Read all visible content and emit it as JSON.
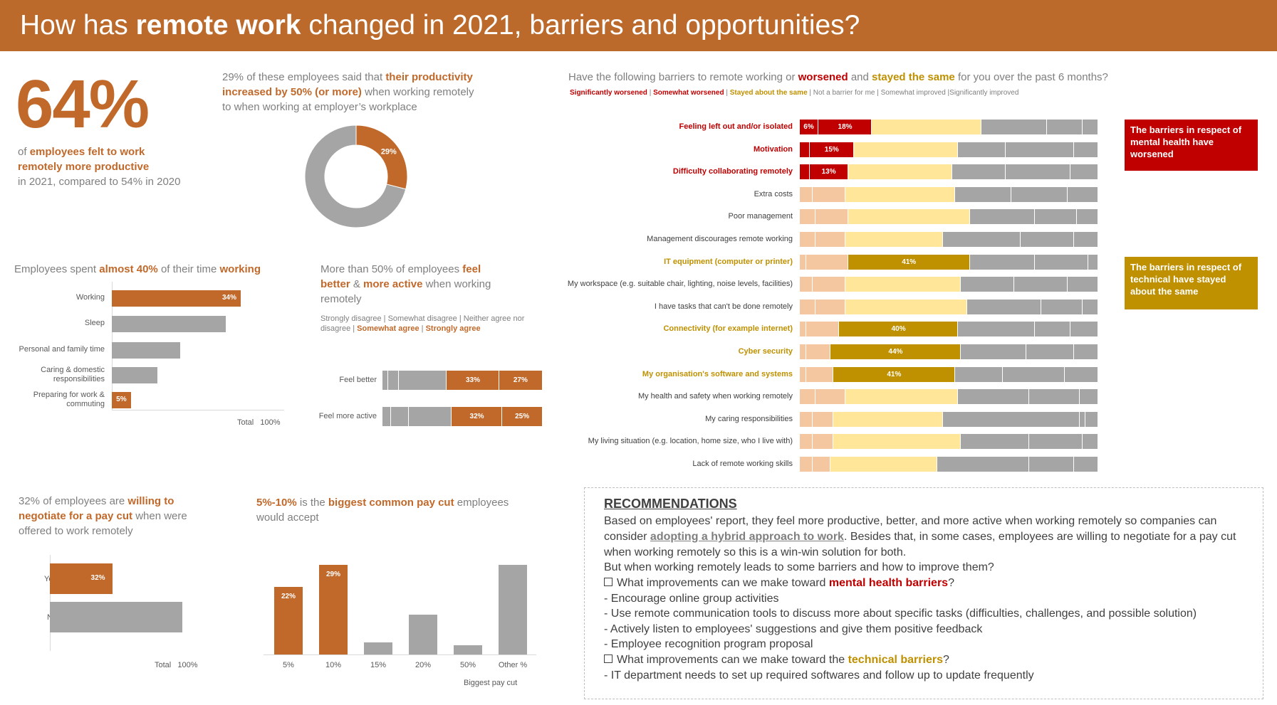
{
  "banner": {
    "title_pre": "How has ",
    "title_bold": "remote work",
    "title_post": " changed in 2021, barriers and opportunities?"
  },
  "kpi": {
    "value": "64%",
    "line1_pre": "of ",
    "line1_hl": "employees felt to work",
    "line2_hl": "remotely more productive",
    "line3": "in 2021, compared to 54% in 2020"
  },
  "productivity": {
    "text_pre": "29% of these employees said that ",
    "text_hl1": "their productivity",
    "text_hl2": "increased by 50% (or more)",
    "text_post": " when working remotely",
    "text_line3": "to when working at employer’s workplace"
  },
  "time_spent": {
    "title_pre": "Employees spent ",
    "title_hl": "almost 40%",
    "title_mid": " of their time ",
    "title_hl2": "working",
    "axis_total": "Total",
    "axis_max": "100%"
  },
  "feel": {
    "title_pre": "More than 50% of employees ",
    "title_hl1": "feel",
    "title_hl2": "better",
    "title_amp": " & ",
    "title_hl3": "more active",
    "title_post": " when working",
    "title_line3": "remotely",
    "legend_plain": "Strongly disagree | Somewhat disagree | Neither agree nor",
    "legend_plain2": "disagree | ",
    "legend_hl1": "Somewhat agree",
    "legend_sep": " | ",
    "legend_hl2": "Strongly agree"
  },
  "barriers": {
    "title_pre": "Have the following barriers to remote working or ",
    "title_worse": "worsened",
    "title_and": " and ",
    "title_same": "stayed the same",
    "title_post": " for you over the past 6 months?",
    "legend_sig_worse": "Significantly worsened",
    "legend_sep": " | ",
    "legend_some_worse": "Somewhat worsened",
    "legend_same": "Stayed about the same",
    "legend_rest": " | Not a barrier for me | Somewhat improved |Significantly improved",
    "callout_mental": "The barriers in respect of mental health have worsened",
    "callout_technical": "The barriers in respect of technical have stayed about the same"
  },
  "paycut_negotiate": {
    "text_pre": "32% of employees are ",
    "text_hl1": "willing to",
    "text_hl2": "negotiate for a pay cut",
    "text_post": " when were",
    "text_line3": "offered to work remotely",
    "axis_total": "Total",
    "axis_max": "100%"
  },
  "paycut_size": {
    "text_hl1": "5%-10%",
    "text_mid": " is the ",
    "text_hl2": "biggest common pay cut",
    "text_post": " employees",
    "text_line2": "would accept",
    "xlabel": "Biggest pay cut"
  },
  "recommendations": {
    "title": "RECOMMENDATIONS",
    "p1": "Based on employees' report, they feel more productive, better, and more active when working remotely so companies can",
    "p2_pre": "consider ",
    "p2_link": "adopting a hybrid approach to work",
    "p2_post": ". Besides that, in some cases, employees are willing to negotiate for a pay cut",
    "p3": "when working remotely so this is a win-win solution for both.",
    "p4": "But when working remotely leads to some barriers and how to improve them?",
    "q1_pre": "What improvements can we make toward ",
    "q1_hl": "mental health barriers",
    "q1_post": "?",
    "m1": "- Encourage online group activities",
    "m2": "- Use remote communication tools to discuss more about specific tasks (difficulties, challenges, and possible solution)",
    "m3": "- Actively listen to employees' suggestions and give them positive feedback",
    "m4": "- Employee recognition program proposal",
    "q2_pre": "What improvements can we make toward the ",
    "q2_hl": "technical barriers",
    "q2_post": "?",
    "t1": "- IT department needs to set up required softwares and follow up to update frequently"
  },
  "colors": {
    "orange": "#c0692b",
    "banner": "#bb6a2b",
    "gray": "#a5a5a5",
    "red": "#c00000",
    "gold": "#bf9000",
    "light_orange": "#f4c7a1",
    "light_yellow": "#ffe699"
  },
  "chart_data": [
    {
      "type": "pie",
      "title": "Productivity increased by 50% (or more)",
      "categories": [
        "Increased by 50% (or more)",
        "Other"
      ],
      "values": [
        29,
        71
      ],
      "labels": [
        "29%"
      ]
    },
    {
      "type": "bar",
      "orientation": "horizontal",
      "title": "Employees spent almost 40% of their time working",
      "categories": [
        "Working",
        "Sleep",
        "Personal and family time",
        "Caring & domestic responsibilities",
        "Preparing for work & commuting"
      ],
      "values": [
        34,
        30,
        18,
        12,
        5
      ],
      "labels": [
        "34%",
        "",
        "",
        "",
        "5%"
      ],
      "xlim": [
        0,
        100
      ],
      "xlabel": "Total 100%"
    },
    {
      "type": "bar",
      "orientation": "horizontal",
      "stacked": true,
      "title": "Feel better / more active when working remotely",
      "categories": [
        "Feel better",
        "Feel more active"
      ],
      "series": [
        {
          "name": "Strongly disagree",
          "values": [
            3,
            5
          ]
        },
        {
          "name": "Somewhat disagree",
          "values": [
            7,
            11
          ]
        },
        {
          "name": "Neither agree nor disagree",
          "values": [
            30,
            27
          ]
        },
        {
          "name": "Somewhat agree",
          "values": [
            33,
            32
          ]
        },
        {
          "name": "Strongly agree",
          "values": [
            27,
            25
          ]
        }
      ],
      "labels": {
        "Somewhat agree": [
          "33%",
          "32%"
        ],
        "Strongly agree": [
          "27%",
          "25%"
        ]
      }
    },
    {
      "type": "bar",
      "orientation": "horizontal",
      "stacked": true,
      "title": "Have the following barriers to remote working worsened or stayed the same for you over the past 6 months?",
      "categories": [
        "Feeling left out and/or isolated",
        "Motivation",
        "Difficulty collaborating remotely",
        "Extra costs",
        "Poor management",
        "Management discourages remote working",
        "IT equipment (computer or printer)",
        "My workspace (e.g. suitable chair, lighting, noise levels, facilities)",
        "I have tasks that can't be done remotely",
        "Connectivity (for example internet)",
        "Cyber security",
        "My organisation's software and systems",
        "My health and safety when working remotely",
        "My caring responsibilities",
        "My living situation (e.g. location, home size, who I live with)",
        "Lack of remote working skills"
      ],
      "highlight": [
        "mental",
        "mental",
        "mental",
        "none",
        "none",
        "none",
        "technical",
        "none",
        "none",
        "technical",
        "technical",
        "technical",
        "none",
        "none",
        "none",
        "none"
      ],
      "series": [
        {
          "name": "Significantly worsened",
          "values": [
            6,
            3,
            3,
            4,
            5,
            5,
            2,
            4,
            5,
            2,
            2,
            2,
            5,
            4,
            4,
            4
          ]
        },
        {
          "name": "Somewhat worsened",
          "values": [
            18,
            15,
            13,
            11,
            11,
            10,
            14,
            11,
            10,
            11,
            8,
            9,
            10,
            7,
            7,
            6
          ]
        },
        {
          "name": "Stayed about the same",
          "values": [
            37,
            35,
            35,
            37,
            41,
            33,
            41,
            39,
            41,
            40,
            44,
            41,
            38,
            37,
            43,
            36
          ]
        },
        {
          "name": "Not a barrier for me",
          "values": [
            22,
            16,
            18,
            19,
            22,
            26,
            22,
            18,
            25,
            26,
            22,
            16,
            24,
            46,
            23,
            31
          ]
        },
        {
          "name": "Somewhat improved",
          "values": [
            12,
            23,
            22,
            19,
            14,
            18,
            18,
            18,
            14,
            12,
            16,
            21,
            17,
            2,
            18,
            15
          ]
        },
        {
          "name": "Significantly improved",
          "values": [
            5,
            8,
            9,
            10,
            7,
            8,
            3,
            10,
            5,
            9,
            8,
            11,
            6,
            4,
            5,
            8
          ]
        }
      ],
      "labels": {
        "Significantly worsened": [
          "6%",
          "",
          "",
          "",
          "",
          "",
          "",
          "",
          "",
          "",
          "",
          "",
          "",
          "",
          "",
          ""
        ],
        "Somewhat worsened": [
          "18%",
          "15%",
          "13%",
          "",
          "",
          "",
          "",
          "",
          "",
          "",
          "",
          "",
          "",
          "",
          "",
          ""
        ],
        "Stayed about the same": [
          "",
          "",
          "",
          "",
          "",
          "",
          "41%",
          "",
          "",
          "40%",
          "44%",
          "41%",
          "",
          "",
          "",
          ""
        ]
      }
    },
    {
      "type": "bar",
      "orientation": "horizontal",
      "title": "Willing to negotiate for a pay cut",
      "categories": [
        "Yes",
        "No"
      ],
      "values": [
        32,
        68
      ],
      "labels": [
        "32%",
        ""
      ],
      "xlim": [
        0,
        100
      ],
      "xlabel": "Total 100%"
    },
    {
      "type": "bar",
      "title": "Biggest common pay cut employees would accept",
      "categories": [
        "5%",
        "10%",
        "15%",
        "20%",
        "50%",
        "Other %"
      ],
      "values": [
        22,
        29,
        4,
        13,
        3,
        29
      ],
      "labels": [
        "22%",
        "29%",
        "",
        "",
        "",
        ""
      ],
      "xlabel": "Biggest pay cut",
      "ylim": [
        0,
        30
      ]
    }
  ]
}
